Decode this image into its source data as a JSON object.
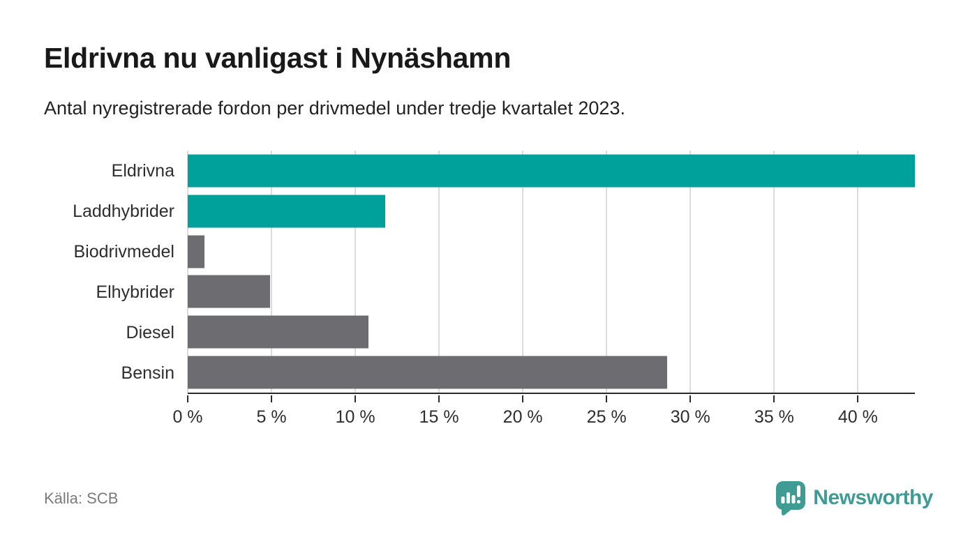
{
  "chart_data": {
    "type": "bar",
    "orientation": "horizontal",
    "title": "Eldrivna nu vanligast i Nynäshamn",
    "subtitle": "Antal nyregistrerade fordon per drivmedel under tredje kvartalet 2023.",
    "categories": [
      "Eldrivna",
      "Laddhybrider",
      "Biodrivmedel",
      "Elhybrider",
      "Diesel",
      "Bensin"
    ],
    "values": [
      43.4,
      11.8,
      1.0,
      4.9,
      10.8,
      28.6
    ],
    "unit": "%",
    "xlabel": "",
    "ylabel": "",
    "xlim": [
      0,
      43.4
    ],
    "xtick_values": [
      0,
      5,
      10,
      15,
      20,
      25,
      30,
      35,
      40
    ],
    "xtick_labels": [
      "0 %",
      "5 %",
      "10 %",
      "15 %",
      "20 %",
      "25 %",
      "30 %",
      "35 %",
      "40 %"
    ],
    "grid": true,
    "legend": false,
    "bar_colors": [
      "#00A19B",
      "#00A19B",
      "#6C6C71",
      "#6C6C71",
      "#6C6C71",
      "#6C6C71"
    ],
    "highlight_color": "#00A19B",
    "default_color": "#6C6C71"
  },
  "footer": {
    "source": "Källa: SCB",
    "logo_text": "Newsworthy"
  },
  "colors": {
    "accent_teal": "#00A19B",
    "bar_gray": "#6C6C71",
    "logo_teal": "#3F9C95",
    "axis": "#2B2B2B",
    "gridline": "#DCDCDC",
    "title_text": "#191919",
    "body_text": "#2E2E2E",
    "muted_text": "#7A7A7A"
  }
}
